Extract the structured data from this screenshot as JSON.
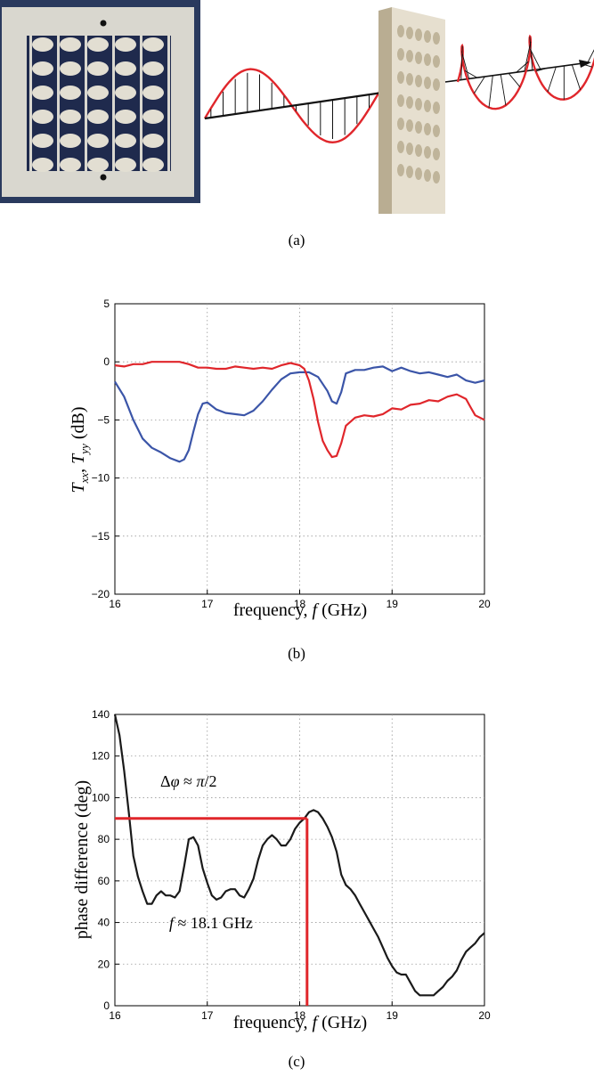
{
  "panels": {
    "a": {
      "caption": "(a)"
    },
    "b": {
      "caption": "(b)"
    },
    "c": {
      "caption": "(c)"
    }
  },
  "colors": {
    "red": "#e0262b",
    "blue": "#3b55a8",
    "black": "#1a1a1a",
    "board": "#e6dfcf",
    "board_dark": "#c9bea6",
    "grid": "#999999"
  },
  "chart_data": [
    {
      "type": "line",
      "xlabel": "frequency, f (GHz)",
      "ylabel": "T_xx, T_yy (dB)",
      "xlim": [
        16,
        20
      ],
      "ylim": [
        -20,
        5
      ],
      "xticks": [
        "16",
        "17",
        "18",
        "19",
        "20"
      ],
      "yticks": [
        "5",
        "0",
        "−5",
        "−10",
        "−15",
        "−20"
      ],
      "grid": true,
      "series": [
        {
          "color": "#3b55a8",
          "x": [
            16.0,
            16.1,
            16.2,
            16.3,
            16.4,
            16.5,
            16.6,
            16.7,
            16.75,
            16.8,
            16.85,
            16.9,
            16.95,
            17.0,
            17.1,
            17.2,
            17.3,
            17.4,
            17.5,
            17.6,
            17.7,
            17.8,
            17.9,
            18.0,
            18.1,
            18.2,
            18.3,
            18.35,
            18.4,
            18.45,
            18.5,
            18.6,
            18.7,
            18.8,
            18.9,
            19.0,
            19.1,
            19.2,
            19.3,
            19.4,
            19.5,
            19.6,
            19.7,
            19.8,
            19.9,
            20.0
          ],
          "y": [
            -1.7,
            -3.0,
            -5.0,
            -6.6,
            -7.4,
            -7.8,
            -8.3,
            -8.6,
            -8.4,
            -7.6,
            -6.0,
            -4.5,
            -3.6,
            -3.5,
            -4.1,
            -4.4,
            -4.5,
            -4.6,
            -4.2,
            -3.4,
            -2.4,
            -1.5,
            -1.0,
            -0.9,
            -0.9,
            -1.3,
            -2.5,
            -3.4,
            -3.6,
            -2.6,
            -1.0,
            -0.7,
            -0.7,
            -0.5,
            -0.4,
            -0.8,
            -0.5,
            -0.8,
            -1.0,
            -0.9,
            -1.1,
            -1.3,
            -1.1,
            -1.6,
            -1.8,
            -1.6
          ]
        },
        {
          "color": "#e0262b",
          "x": [
            16.0,
            16.1,
            16.2,
            16.3,
            16.4,
            16.5,
            16.6,
            16.7,
            16.8,
            16.9,
            17.0,
            17.1,
            17.2,
            17.3,
            17.4,
            17.5,
            17.6,
            17.7,
            17.8,
            17.9,
            18.0,
            18.05,
            18.1,
            18.15,
            18.2,
            18.25,
            18.3,
            18.35,
            18.4,
            18.45,
            18.5,
            18.6,
            18.7,
            18.8,
            18.9,
            19.0,
            19.1,
            19.2,
            19.3,
            19.4,
            19.5,
            19.6,
            19.7,
            19.8,
            19.85,
            19.9,
            20.0
          ],
          "y": [
            -0.3,
            -0.4,
            -0.2,
            -0.2,
            0.0,
            0.0,
            0.0,
            0.0,
            -0.2,
            -0.5,
            -0.5,
            -0.6,
            -0.6,
            -0.4,
            -0.5,
            -0.6,
            -0.5,
            -0.6,
            -0.3,
            -0.1,
            -0.3,
            -0.6,
            -1.6,
            -3.2,
            -5.2,
            -6.8,
            -7.6,
            -8.2,
            -8.1,
            -7.0,
            -5.5,
            -4.8,
            -4.6,
            -4.7,
            -4.5,
            -4.0,
            -4.1,
            -3.7,
            -3.6,
            -3.3,
            -3.4,
            -3.0,
            -2.8,
            -3.2,
            -3.9,
            -4.6,
            -5.0
          ]
        }
      ]
    },
    {
      "type": "line",
      "xlabel": "frequency, f (GHz)",
      "ylabel": "phase difference (deg)",
      "xlim": [
        16,
        20
      ],
      "ylim": [
        0,
        140
      ],
      "xticks": [
        "16",
        "17",
        "18",
        "19",
        "20"
      ],
      "yticks": [
        "140",
        "120",
        "100",
        "80",
        "60",
        "40",
        "20",
        "0"
      ],
      "grid": true,
      "annotations": [
        "Δφ ≈ π/2",
        "f ≈ 18.1 GHz"
      ],
      "marker": {
        "x": 18.08,
        "y": 90
      },
      "series": [
        {
          "color": "#1a1a1a",
          "x": [
            16.0,
            16.05,
            16.1,
            16.15,
            16.2,
            16.25,
            16.3,
            16.35,
            16.4,
            16.45,
            16.5,
            16.55,
            16.6,
            16.65,
            16.7,
            16.75,
            16.8,
            16.85,
            16.9,
            16.95,
            17.0,
            17.05,
            17.1,
            17.15,
            17.2,
            17.25,
            17.3,
            17.35,
            17.4,
            17.45,
            17.5,
            17.55,
            17.6,
            17.65,
            17.7,
            17.75,
            17.8,
            17.85,
            17.9,
            17.95,
            18.0,
            18.05,
            18.1,
            18.15,
            18.2,
            18.25,
            18.3,
            18.35,
            18.4,
            18.45,
            18.5,
            18.55,
            18.6,
            18.65,
            18.7,
            18.75,
            18.8,
            18.85,
            18.9,
            18.95,
            19.0,
            19.05,
            19.1,
            19.15,
            19.2,
            19.25,
            19.3,
            19.35,
            19.4,
            19.45,
            19.5,
            19.55,
            19.6,
            19.65,
            19.7,
            19.75,
            19.8,
            19.85,
            19.9,
            19.95,
            20.0
          ],
          "y": [
            140,
            130,
            113,
            93,
            72,
            62,
            55,
            49,
            49,
            53,
            55,
            53,
            53,
            52,
            55,
            67,
            80,
            81,
            77,
            66,
            59,
            53,
            51,
            52,
            55,
            56,
            56,
            53,
            52,
            56,
            61,
            70,
            77,
            80,
            82,
            80,
            77,
            77,
            80,
            85,
            88,
            90,
            93,
            94,
            93,
            90,
            86,
            81,
            74,
            63,
            58,
            56,
            53,
            49,
            45,
            41,
            37,
            33,
            28,
            23,
            19,
            16,
            15,
            15,
            11,
            7,
            5,
            5,
            5,
            5,
            7,
            9,
            12,
            14,
            17,
            22,
            26,
            28,
            30,
            33,
            35
          ]
        }
      ]
    }
  ]
}
